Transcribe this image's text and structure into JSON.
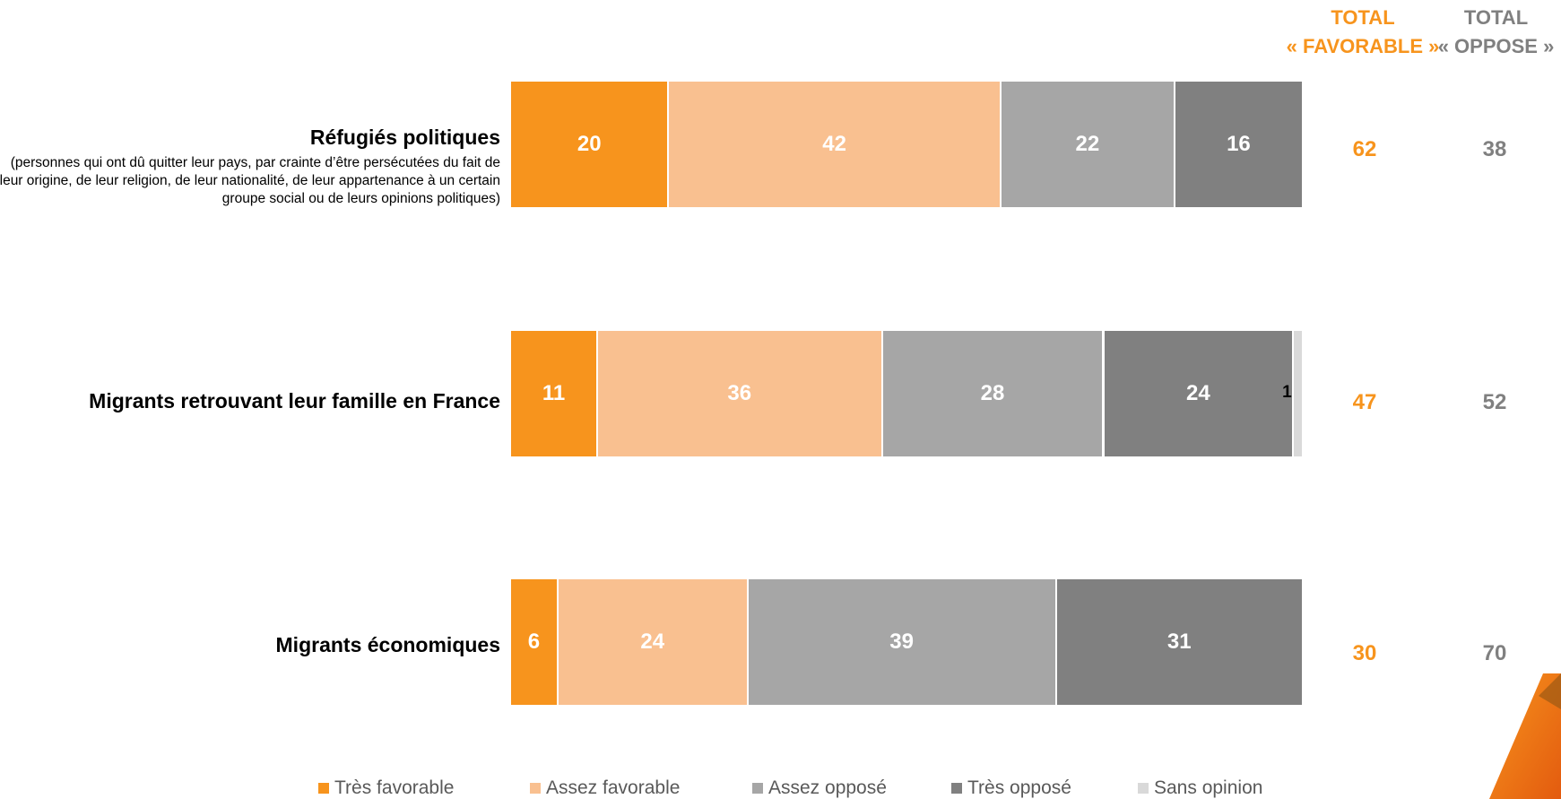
{
  "header": {
    "favorable_line1": "TOTAL",
    "favorable_line2": "« FAVORABLE »",
    "oppose_line1": "TOTAL",
    "oppose_line2": "« OPPOSE »"
  },
  "colors": {
    "tres_favorable": "#F7941D",
    "assez_favorable": "#F9C090",
    "assez_oppose": "#A6A6A6",
    "tres_oppose": "#808080",
    "sans_opinion": "#D9D9D9",
    "total_favorable": "#F7941D",
    "total_oppose": "#808080"
  },
  "chart_data": {
    "type": "bar",
    "orientation": "horizontal",
    "stacked": true,
    "xlim": [
      0,
      100
    ],
    "categories": [
      {
        "label": "Réfugiés politiques",
        "sublabel": "(personnes qui ont dû quitter leur pays, par crainte d’être persécutées du fait de leur origine, de leur religion, de leur nationalité, de leur appartenance à un certain groupe social ou de leurs opinions politiques)",
        "total_favorable": "62",
        "total_oppose": "38"
      },
      {
        "label": "Migrants retrouvant leur famille en France",
        "sublabel": "",
        "total_favorable": "47",
        "total_oppose": "52"
      },
      {
        "label": "Migrants économiques",
        "sublabel": "",
        "total_favorable": "30",
        "total_oppose": "70"
      }
    ],
    "series": [
      {
        "name": "Très favorable",
        "color": "#F7941D",
        "values": [
          20,
          11,
          6
        ]
      },
      {
        "name": "Assez favorable",
        "color": "#F9C090",
        "values": [
          42,
          36,
          24
        ]
      },
      {
        "name": "Assez opposé",
        "color": "#A6A6A6",
        "values": [
          22,
          28,
          39
        ]
      },
      {
        "name": "Très opposé",
        "color": "#808080",
        "values": [
          16,
          24,
          31
        ]
      },
      {
        "name": "Sans opinion",
        "color": "#D9D9D9",
        "values": [
          0,
          1,
          0
        ]
      }
    ],
    "legend_position": "bottom",
    "grid": false
  }
}
